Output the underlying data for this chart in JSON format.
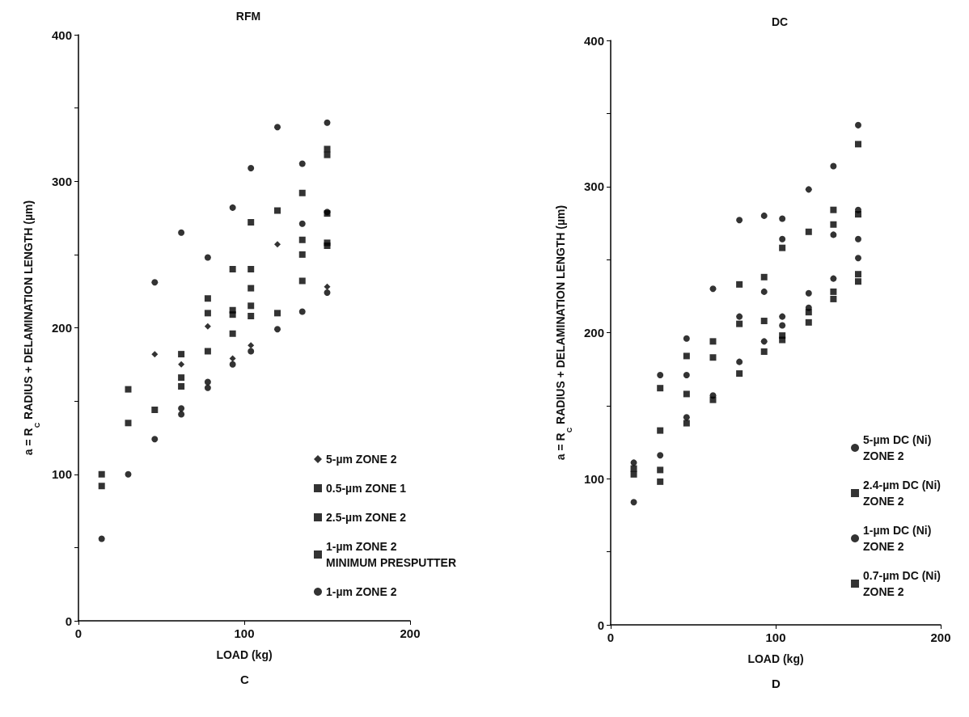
{
  "chart_data": [
    {
      "type": "scatter",
      "title": "RFM",
      "xlabel": "LOAD (kg)",
      "ylabel": "a = R$_{C}$ RADIUS + DELAMINATION LENGTH (µm)",
      "annotations": [
        "C"
      ],
      "xlim": [
        0,
        200
      ],
      "xticks": [
        0,
        100,
        200
      ],
      "ylim": [
        0,
        400
      ],
      "yticks": [
        0,
        {
          "value": 50,
          "label": null
        },
        100,
        {
          "value": 150,
          "label": null
        },
        200,
        {
          "value": 250,
          "label": null
        },
        300,
        {
          "value": 350,
          "label": null
        },
        400
      ],
      "grid": false,
      "legend": "bottom right",
      "series": [
        {
          "name": "5-µm ZONE 2",
          "color": "#000000",
          "marker": "diamond",
          "x": [
            46,
            62,
            78,
            93,
            104,
            120,
            150
          ],
          "values": [
            182,
            175,
            201,
            179,
            188,
            257,
            228
          ]
        },
        {
          "name": "0.5-µm ZONE 1",
          "color": "#000000",
          "marker": "square",
          "x": [
            14,
            30,
            62,
            78,
            93,
            104,
            104,
            120,
            135,
            150,
            150
          ],
          "values": [
            100,
            158,
            182,
            220,
            240,
            272,
            215,
            280,
            292,
            322,
            318
          ]
        },
        {
          "name": "2.5-µm ZONE 2",
          "color": "#000000",
          "marker": "square",
          "x": [
            14,
            30,
            62,
            93,
            104,
            135,
            150,
            150
          ],
          "values": [
            92,
            135,
            166,
            196,
            227,
            260,
            278,
            258
          ]
        },
        {
          "name": "1-µm ZONE 2\nMINIMUM PRESPUTTER",
          "color": "#000000",
          "marker": "square",
          "x": [
            46,
            62,
            78,
            78,
            93,
            93,
            104,
            104,
            120,
            135,
            135,
            150
          ],
          "values": [
            144,
            160,
            184,
            210,
            212,
            209,
            240,
            208,
            210,
            250,
            232,
            256
          ]
        },
        {
          "name": "1-µm ZONE 2",
          "color": "#000000",
          "marker": "circle",
          "x": [
            14,
            30,
            46,
            46,
            62,
            62,
            62,
            78,
            78,
            78,
            93,
            93,
            104,
            104,
            120,
            120,
            135,
            135,
            135,
            150,
            150,
            150
          ],
          "values": [
            56,
            100,
            124,
            231,
            141,
            145,
            265,
            159,
            163,
            248,
            175,
            282,
            184,
            309,
            199,
            337,
            211,
            271,
            312,
            224,
            279,
            340
          ]
        }
      ]
    },
    {
      "type": "scatter",
      "title": "DC",
      "xlabel": "LOAD (kg)",
      "ylabel": "a = R$_{C}$ RADIUS + DELAMINATION LENGTH (µm)",
      "annotations": [
        "D"
      ],
      "xlim": [
        0,
        200
      ],
      "xticks": [
        0,
        100,
        200
      ],
      "ylim": [
        0,
        400
      ],
      "yticks": [
        0,
        {
          "value": 50,
          "label": null
        },
        100,
        {
          "value": 150,
          "label": null
        },
        200,
        {
          "value": 250,
          "label": null
        },
        300,
        {
          "value": 350,
          "label": null
        },
        400
      ],
      "grid": false,
      "legend": "bottom right",
      "series": [
        {
          "name": "5-µm DC (Ni)\nZONE 2",
          "color": "#000000",
          "marker": "circle",
          "x": [
            30,
            46,
            62,
            78,
            93,
            104,
            120,
            135,
            150
          ],
          "values": [
            171,
            196,
            230,
            277,
            280,
            278,
            298,
            314,
            342
          ]
        },
        {
          "name": "2.4-µm DC (Ni)\nZONE 2",
          "color": "#000000",
          "marker": "square",
          "x": [
            14,
            30,
            30,
            46,
            46,
            62,
            62,
            78,
            93,
            104,
            120,
            135,
            135,
            150,
            150
          ],
          "values": [
            107,
            162,
            133,
            184,
            158,
            194,
            183,
            233,
            238,
            258,
            269,
            284,
            274,
            329,
            281
          ]
        },
        {
          "name": "1-µm DC (Ni)\nZONE 2",
          "color": "#000000",
          "marker": "circle",
          "x": [
            14,
            14,
            30,
            46,
            46,
            62,
            78,
            78,
            93,
            93,
            104,
            104,
            104,
            120,
            120,
            135,
            135,
            150,
            150,
            150
          ],
          "values": [
            84,
            111,
            116,
            171,
            142,
            157,
            211,
            180,
            228,
            194,
            264,
            211,
            205,
            227,
            217,
            267,
            237,
            284,
            264,
            251
          ]
        },
        {
          "name": "0.7-µm DC (Ni)\nZONE 2",
          "color": "#000000",
          "marker": "square",
          "x": [
            14,
            30,
            30,
            46,
            62,
            78,
            78,
            93,
            93,
            104,
            104,
            120,
            120,
            135,
            135,
            150,
            150
          ],
          "values": [
            103,
            106,
            98,
            138,
            154,
            172,
            206,
            187,
            208,
            198,
            195,
            214,
            207,
            223,
            228,
            240,
            235
          ]
        }
      ]
    }
  ]
}
